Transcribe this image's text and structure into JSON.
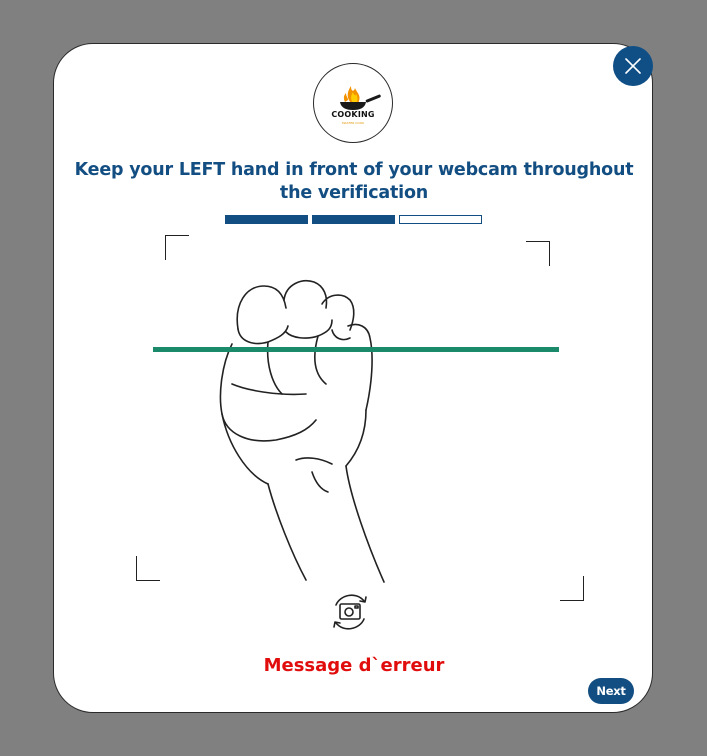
{
  "modal": {
    "close_label": "close",
    "logo": {
      "brand": "COOKING",
      "tagline": "MASTER COOK"
    },
    "title": "Keep your LEFT hand in front of your webcam throughout the verification",
    "progress": {
      "total_steps": 3,
      "completed_steps": 2
    },
    "scanner": {
      "hand": "left",
      "gesture": "fist"
    },
    "error_message": "Message d`erreur",
    "next_label": "Next"
  },
  "colors": {
    "overlay": "#808080",
    "primary": "#134e82",
    "scan_line": "#1a8a6a",
    "error": "#e10d0d"
  },
  "icons": {
    "close": "close-icon",
    "camera": "camera-switch-icon",
    "hand": "fist-hand-icon",
    "logo": "frying-pan-flame-icon"
  }
}
